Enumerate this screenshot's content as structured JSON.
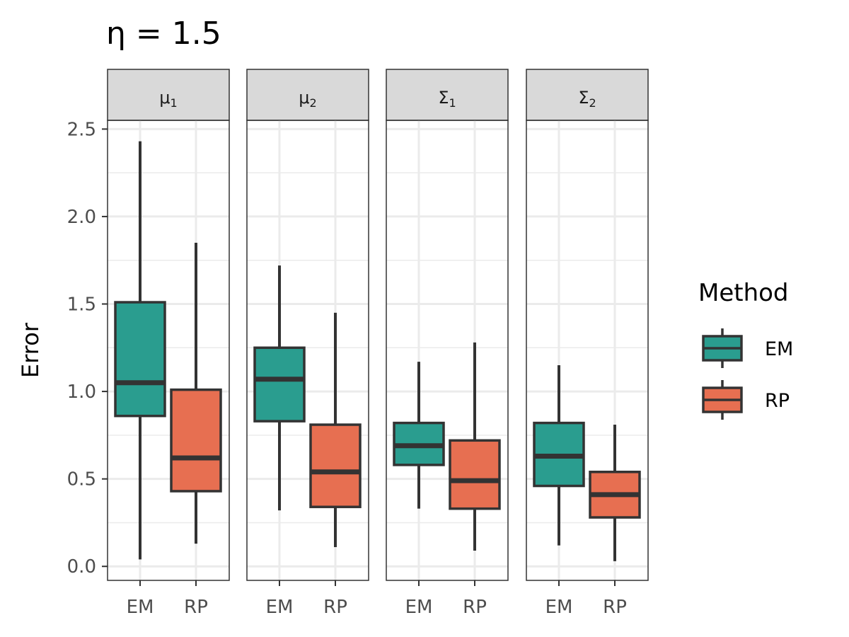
{
  "chart_data": {
    "type": "box",
    "title": "η = 1.5",
    "ylabel": "Error",
    "xlabel": "",
    "ylim": [
      -0.08,
      2.55
    ],
    "yticks": [
      "0.0",
      "0.5",
      "1.0",
      "1.5",
      "2.0",
      "2.5"
    ],
    "grid": true,
    "categories": [
      "EM",
      "RP"
    ],
    "legend": {
      "title": "Method",
      "position": "right",
      "items": [
        {
          "label": "EM",
          "color": "#2a9d8f"
        },
        {
          "label": "RP",
          "color": "#e76f51"
        }
      ]
    },
    "facets": [
      {
        "label": "μ",
        "sub": "1",
        "boxes": [
          {
            "method": "EM",
            "min": 0.04,
            "q1": 0.86,
            "median": 1.05,
            "q3": 1.51,
            "max": 2.43
          },
          {
            "method": "RP",
            "min": 0.13,
            "q1": 0.43,
            "median": 0.62,
            "q3": 1.01,
            "max": 1.85
          }
        ]
      },
      {
        "label": "μ",
        "sub": "2",
        "boxes": [
          {
            "method": "EM",
            "min": 0.32,
            "q1": 0.83,
            "median": 1.07,
            "q3": 1.25,
            "max": 1.72
          },
          {
            "method": "RP",
            "min": 0.11,
            "q1": 0.34,
            "median": 0.54,
            "q3": 0.81,
            "max": 1.45
          }
        ]
      },
      {
        "label": "Σ",
        "sub": "1",
        "boxes": [
          {
            "method": "EM",
            "min": 0.33,
            "q1": 0.58,
            "median": 0.69,
            "q3": 0.82,
            "max": 1.17
          },
          {
            "method": "RP",
            "min": 0.09,
            "q1": 0.33,
            "median": 0.49,
            "q3": 0.72,
            "max": 1.28
          }
        ]
      },
      {
        "label": "Σ",
        "sub": "2",
        "boxes": [
          {
            "method": "EM",
            "min": 0.12,
            "q1": 0.46,
            "median": 0.63,
            "q3": 0.82,
            "max": 1.15
          },
          {
            "method": "RP",
            "min": 0.03,
            "q1": 0.28,
            "median": 0.41,
            "q3": 0.54,
            "max": 0.81
          }
        ]
      }
    ]
  }
}
